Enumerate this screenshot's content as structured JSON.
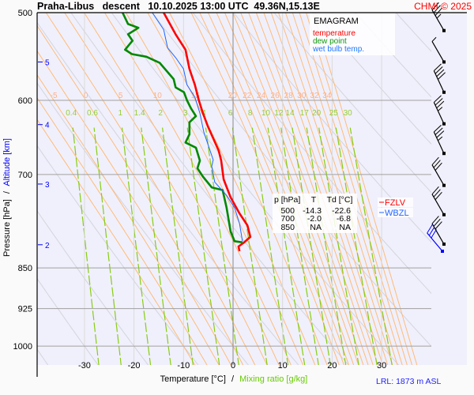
{
  "header": {
    "title": "Praha-Libus   descent   10.10.2025 13:00 UTC  49.36N,15.13E",
    "credit": "CHMI © 2025"
  },
  "axes": {
    "pressure_label": "Pressure [hPa]",
    "separator": "/",
    "altitude_label": "Altitude [km]",
    "temperature_label": "Temperature [°C]",
    "mixing_label": "Mixing ratio [g/kg]"
  },
  "lrl": "LRL: 1873 m ASL",
  "legend": {
    "title": "EMAGRAM",
    "temperature": "temperature",
    "dew_point": "dew point",
    "wet_bulb": "wet bulb temp."
  },
  "table": {
    "headers": [
      "p [hPa]",
      "T",
      "Td [°C]"
    ],
    "rows": [
      [
        "500",
        "-14.3",
        "-22.6"
      ],
      [
        "700",
        "-2.0",
        "-6.8"
      ],
      [
        "850",
        "NA",
        "NA"
      ]
    ]
  },
  "levels": {
    "fzlv": "FZLV",
    "wbzl": "WBZL"
  },
  "colors": {
    "temperature": "#ff0000",
    "dew_point": "#008800",
    "wet_bulb": "#1a66ff",
    "moist_adiabat": "#ffbb77",
    "dry_adiabat": "#d4d4dc",
    "mixing_ratio": "#88cc11",
    "plot_bg": "#f0f0fc",
    "altitude": "#0000ff"
  },
  "chart_data": {
    "type": "line",
    "title": "EMAGRAM",
    "xlabel": "Temperature [°C] / Mixing ratio [g/kg]",
    "ylabel": "Pressure [hPa] / Altitude [km]",
    "xlim": [
      -39,
      40
    ],
    "ylim": [
      1040,
      500
    ],
    "y_scale": "log",
    "pressure_ticks": [
      500,
      600,
      700,
      850,
      925,
      1000
    ],
    "temperature_ticks": [
      -30,
      -20,
      -10,
      0,
      10,
      20,
      30
    ],
    "altitude_ticks": [
      {
        "km": "5",
        "p": 554
      },
      {
        "km": "4",
        "p": 631
      },
      {
        "km": "3",
        "p": 714
      },
      {
        "km": "2",
        "p": 810
      }
    ],
    "moist_adiabat_labels": [
      "-5",
      "0",
      "5",
      "10",
      "15",
      "20",
      "22",
      "24",
      "26",
      "28",
      "30",
      "32",
      "34"
    ],
    "mixing_ratio_labels": [
      "0.4",
      "0.6",
      "1",
      "1.4",
      "2",
      "3",
      "4",
      "6",
      "8",
      "10",
      "12",
      "14",
      "17",
      "20",
      "25",
      "30"
    ],
    "series": [
      {
        "name": "temperature",
        "points": [
          [
            500,
            -14.0
          ],
          [
            523,
            -11.6
          ],
          [
            540,
            -9.6
          ],
          [
            562,
            -8.8
          ],
          [
            581,
            -7.7
          ],
          [
            600,
            -6.9
          ],
          [
            616,
            -6.1
          ],
          [
            633,
            -5.1
          ],
          [
            666,
            -2.9
          ],
          [
            680,
            -2.4
          ],
          [
            707,
            -1.9
          ],
          [
            734,
            -0.5
          ],
          [
            759,
            1.3
          ],
          [
            778,
            2.9
          ],
          [
            797,
            3.5
          ],
          [
            807,
            2.1
          ],
          [
            813,
            1.1
          ],
          [
            821,
            1.3
          ]
        ]
      },
      {
        "name": "dew point",
        "points": [
          [
            500,
            -22.3
          ],
          [
            512,
            -21.2
          ],
          [
            516,
            -19.1
          ],
          [
            523,
            -21.2
          ],
          [
            530,
            -20.3
          ],
          [
            540,
            -21.8
          ],
          [
            545,
            -20.4
          ],
          [
            548,
            -17.5
          ],
          [
            555,
            -14.8
          ],
          [
            574,
            -12.0
          ],
          [
            584,
            -11.6
          ],
          [
            590,
            -9.9
          ],
          [
            600,
            -9.3
          ],
          [
            610,
            -8.5
          ],
          [
            620,
            -7.5
          ],
          [
            628,
            -8.8
          ],
          [
            644,
            -8.8
          ],
          [
            655,
            -9.6
          ],
          [
            662,
            -7.5
          ],
          [
            680,
            -6.7
          ],
          [
            691,
            -7.2
          ],
          [
            703,
            -6.1
          ],
          [
            719,
            -4.3
          ],
          [
            723,
            -2.1
          ],
          [
            750,
            -1.3
          ],
          [
            788,
            -0.5
          ],
          [
            804,
            0.3
          ],
          [
            806,
            1.9
          ]
        ]
      },
      {
        "name": "wet bulb temp.",
        "points": [
          [
            500,
            -16.3
          ],
          [
            518,
            -14.0
          ],
          [
            538,
            -13.2
          ],
          [
            549,
            -11.6
          ],
          [
            562,
            -10.0
          ],
          [
            581,
            -9.3
          ],
          [
            596,
            -7.7
          ],
          [
            616,
            -6.7
          ],
          [
            641,
            -5.9
          ],
          [
            679,
            -4.0
          ],
          [
            688,
            -4.3
          ],
          [
            711,
            -3.7
          ],
          [
            731,
            -1.3
          ],
          [
            750,
            0.3
          ],
          [
            775,
            1.3
          ],
          [
            804,
            1.9
          ]
        ]
      }
    ],
    "wind": [
      {
        "p": 519,
        "dir": 330,
        "kt": 35
      },
      {
        "p": 554,
        "dir": 330,
        "kt": 5
      },
      {
        "p": 590,
        "dir": 335,
        "kt": 40
      },
      {
        "p": 630,
        "dir": 335,
        "kt": 35
      },
      {
        "p": 670,
        "dir": 335,
        "kt": 35
      },
      {
        "p": 716,
        "dir": 330,
        "kt": 30
      },
      {
        "p": 761,
        "dir": 330,
        "kt": 30
      },
      {
        "p": 809,
        "dir": 330,
        "kt": 30
      },
      {
        "p": 821,
        "dir": 320,
        "kt": 30,
        "surface": true
      }
    ]
  }
}
